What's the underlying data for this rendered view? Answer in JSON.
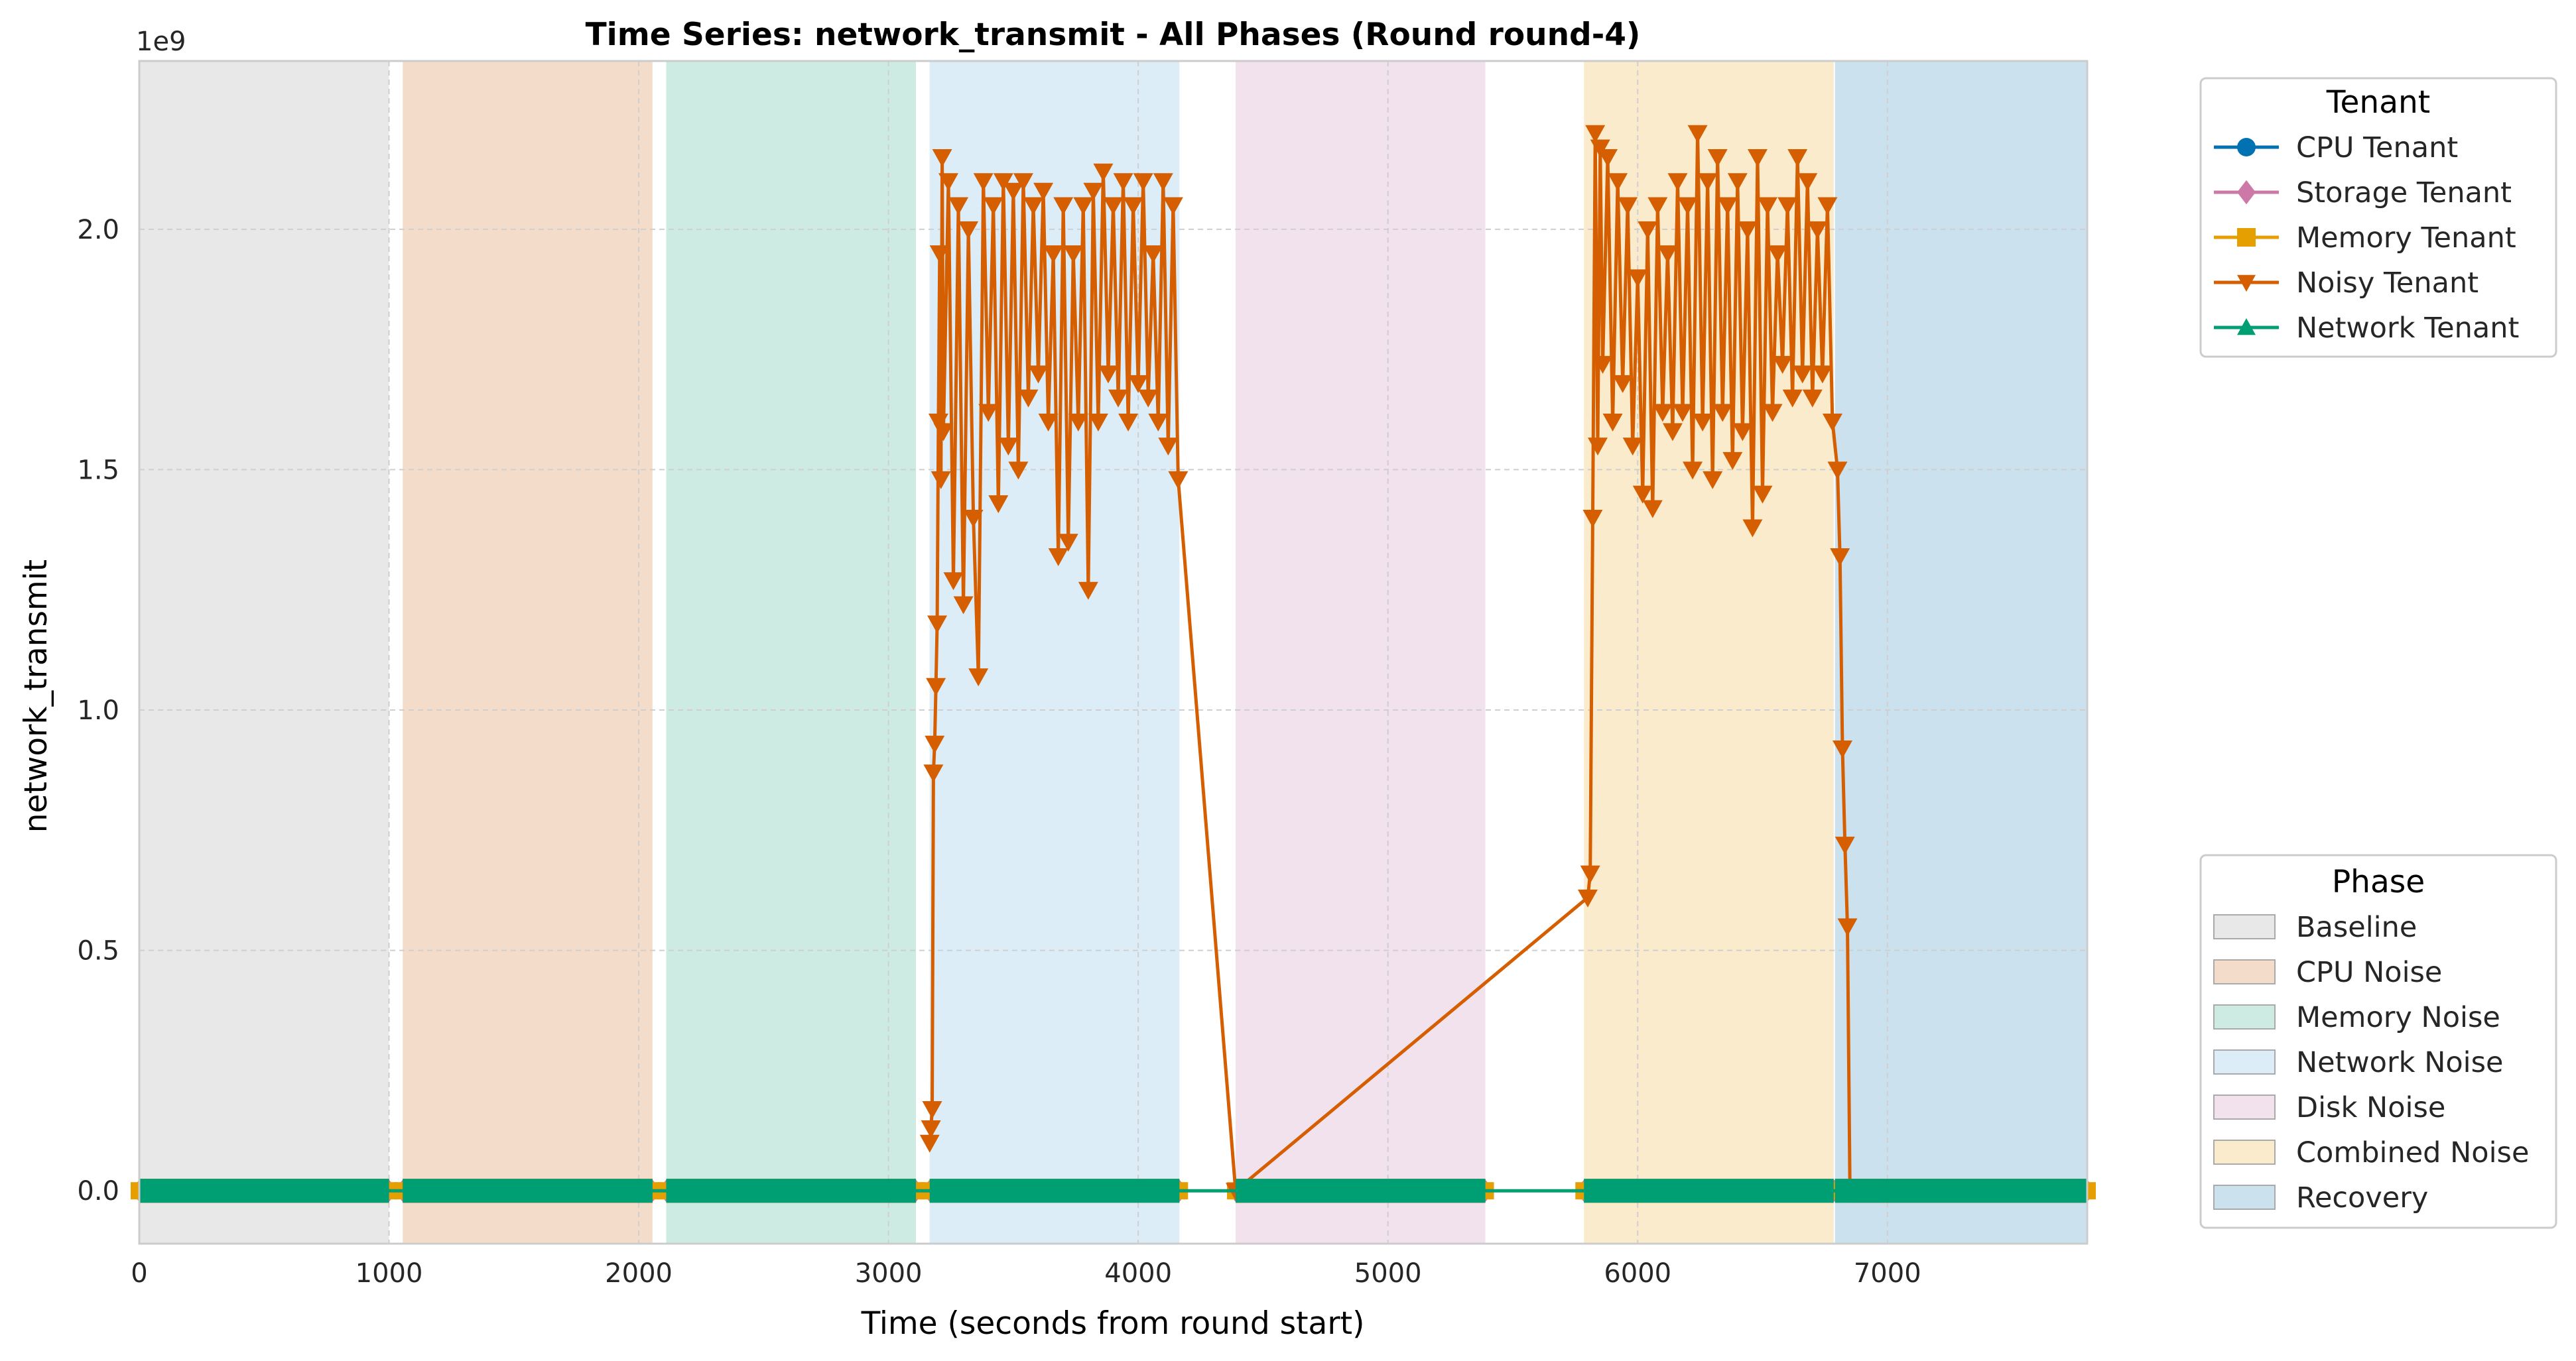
{
  "chart_data": {
    "type": "line",
    "title": "Time Series: network_transmit - All Phases (Round round-4)",
    "xlabel": "Time (seconds from round start)",
    "ylabel": "network_transmit",
    "y_offset_label": "1e9",
    "xlim": [
      0,
      7800
    ],
    "ylim": [
      -0.11,
      2.35
    ],
    "y_unit_multiplier": 1000000000,
    "x_ticks": [
      0,
      1000,
      2000,
      3000,
      4000,
      5000,
      6000,
      7000
    ],
    "x_tick_labels": [
      "0",
      "1000",
      "2000",
      "3000",
      "4000",
      "5000",
      "6000",
      "7000"
    ],
    "y_ticks": [
      0.0,
      0.5,
      1.0,
      1.5,
      2.0
    ],
    "y_tick_labels": [
      "0.0",
      "0.5",
      "1.0",
      "1.5",
      "2.0"
    ],
    "grid": true,
    "phases": [
      {
        "name": "Baseline",
        "start": 0,
        "end": 1000,
        "color": "#e8e8e8"
      },
      {
        "name": "CPU Noise",
        "start": 1055,
        "end": 2055,
        "color": "#f4dcca"
      },
      {
        "name": "Memory Noise",
        "start": 2110,
        "end": 3110,
        "color": "#cdebe2"
      },
      {
        "name": "Network Noise",
        "start": 3165,
        "end": 4165,
        "color": "#dcedf7"
      },
      {
        "name": "Disk Noise",
        "start": 4390,
        "end": 5390,
        "color": "#f2e2ed"
      },
      {
        "name": "Combined Noise",
        "start": 5785,
        "end": 6785,
        "color": "#faebcc"
      },
      {
        "name": "Recovery",
        "start": 6790,
        "end": 7800,
        "color": "#cbe1ee"
      }
    ],
    "phase_legend": {
      "title": "Phase",
      "entries": [
        "Baseline",
        "CPU Noise",
        "Memory Noise",
        "Network Noise",
        "Disk Noise",
        "Combined Noise",
        "Recovery"
      ],
      "placement": "lower-right outside"
    },
    "tenant_legend": {
      "title": "Tenant",
      "placement": "upper-right outside"
    },
    "series": [
      {
        "name": "CPU Tenant",
        "color": "#0072b2",
        "marker": "circle",
        "segments": [
          [
            0,
            1000
          ],
          [
            1055,
            2055
          ],
          [
            2110,
            3110
          ],
          [
            3165,
            4165
          ],
          [
            4390,
            5390
          ],
          [
            5785,
            6785
          ],
          [
            6790,
            7800
          ]
        ],
        "level": 0.0
      },
      {
        "name": "Storage Tenant",
        "color": "#cc79a7",
        "marker": "diamond",
        "segments": [
          [
            0,
            1000
          ],
          [
            1055,
            2055
          ],
          [
            2110,
            3110
          ],
          [
            3165,
            4165
          ],
          [
            4390,
            5390
          ],
          [
            5785,
            6785
          ],
          [
            6790,
            7800
          ]
        ],
        "level": 0.0
      },
      {
        "name": "Memory Tenant",
        "color": "#e69f00",
        "marker": "square",
        "segments": [
          [
            0,
            1000
          ],
          [
            1055,
            2055
          ],
          [
            2110,
            3110
          ],
          [
            3165,
            4165
          ],
          [
            4390,
            5390
          ],
          [
            5785,
            6785
          ],
          [
            6790,
            7800
          ]
        ],
        "level": 0.0
      },
      {
        "name": "Noisy Tenant",
        "color": "#d55e00",
        "marker": "triangle-down",
        "low_segments": [
          [
            0,
            1000
          ],
          [
            1055,
            2055
          ],
          [
            2110,
            3110
          ],
          [
            4390,
            5390
          ],
          [
            6850,
            7800
          ]
        ],
        "x": [
          3165,
          3170,
          3175,
          3180,
          3185,
          3190,
          3195,
          3200,
          3205,
          3210,
          3215,
          3220,
          3240,
          3260,
          3280,
          3300,
          3320,
          3340,
          3360,
          3380,
          3400,
          3420,
          3440,
          3460,
          3480,
          3500,
          3520,
          3540,
          3560,
          3580,
          3600,
          3620,
          3640,
          3660,
          3680,
          3700,
          3720,
          3740,
          3760,
          3780,
          3800,
          3820,
          3840,
          3860,
          3880,
          3900,
          3920,
          3940,
          3960,
          3980,
          4000,
          4020,
          4040,
          4060,
          4080,
          4100,
          4120,
          4140,
          4160,
          4390,
          5800,
          5810,
          5820,
          5830,
          5840,
          5850,
          5860,
          5880,
          5900,
          5920,
          5940,
          5960,
          5980,
          6000,
          6020,
          6040,
          6060,
          6080,
          6100,
          6120,
          6140,
          6160,
          6180,
          6200,
          6220,
          6240,
          6260,
          6280,
          6300,
          6320,
          6340,
          6360,
          6380,
          6400,
          6420,
          6440,
          6460,
          6480,
          6500,
          6520,
          6540,
          6560,
          6580,
          6600,
          6620,
          6640,
          6660,
          6680,
          6700,
          6720,
          6740,
          6760,
          6780,
          6800,
          6810,
          6820,
          6830,
          6840,
          6850
        ],
        "y": [
          0.1,
          0.13,
          0.17,
          0.87,
          0.93,
          1.05,
          1.18,
          1.6,
          1.95,
          1.48,
          2.15,
          1.58,
          2.1,
          1.27,
          2.05,
          1.22,
          2.0,
          1.4,
          1.07,
          2.1,
          1.62,
          2.05,
          1.43,
          2.1,
          1.55,
          2.08,
          1.5,
          2.1,
          1.65,
          2.05,
          1.7,
          2.08,
          1.6,
          1.95,
          1.32,
          2.05,
          1.35,
          1.95,
          1.6,
          2.05,
          1.25,
          2.08,
          1.6,
          2.12,
          1.7,
          2.05,
          1.65,
          2.1,
          1.6,
          2.05,
          1.68,
          2.1,
          1.65,
          1.95,
          1.6,
          2.1,
          1.55,
          2.05,
          1.48,
          0.0,
          0.61,
          0.66,
          1.4,
          2.2,
          1.55,
          2.17,
          1.72,
          2.15,
          1.6,
          2.1,
          1.68,
          2.05,
          1.55,
          1.9,
          1.45,
          2.0,
          1.42,
          2.05,
          1.62,
          1.95,
          1.58,
          2.1,
          1.62,
          2.05,
          1.5,
          2.2,
          1.6,
          2.1,
          1.48,
          2.15,
          1.62,
          2.05,
          1.52,
          2.1,
          1.58,
          2.0,
          1.38,
          2.15,
          1.45,
          2.05,
          1.62,
          1.95,
          1.72,
          2.05,
          1.65,
          2.15,
          1.7,
          2.1,
          1.65,
          2.0,
          1.7,
          2.05,
          1.6,
          1.5,
          1.32,
          0.92,
          0.72,
          0.55,
          0.0
        ]
      },
      {
        "name": "Network Tenant",
        "color": "#009e73",
        "marker": "triangle-up",
        "x": [
          0,
          7800
        ],
        "y": [
          0.0,
          0.0
        ]
      }
    ]
  }
}
